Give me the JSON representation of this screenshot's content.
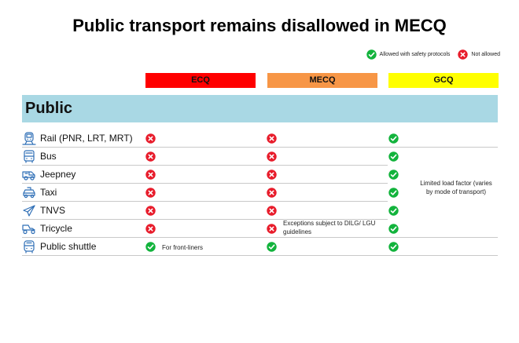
{
  "title": "Public transport remains disallowed in MECQ",
  "legend": {
    "allowed": "Allowed with safety protocols",
    "not_allowed": "Not allowed"
  },
  "columns": {
    "ecq": "ECQ",
    "mecq": "MECQ",
    "gcq": "GCQ"
  },
  "colors": {
    "ecq": "#ff0000",
    "mecq": "#f79646",
    "gcq": "#ffff00",
    "section": "#a9d8e4",
    "allowed": "#12b33c",
    "not_allowed": "#e81c2b"
  },
  "section_title": "Public",
  "rows": [
    {
      "label": "Rail (PNR, LRT, MRT)",
      "icon": "train-icon",
      "ecq": "no",
      "mecq": "no",
      "gcq": "yes"
    },
    {
      "label": "Bus",
      "icon": "bus-icon",
      "ecq": "no",
      "mecq": "no",
      "gcq": "yes"
    },
    {
      "label": "Jeepney",
      "icon": "jeepney-icon",
      "ecq": "no",
      "mecq": "no",
      "gcq": "yes"
    },
    {
      "label": "Taxi",
      "icon": "taxi-icon",
      "ecq": "no",
      "mecq": "no",
      "gcq": "yes"
    },
    {
      "label": "TNVS",
      "icon": "plane-icon",
      "ecq": "no",
      "mecq": "no",
      "gcq": "yes"
    },
    {
      "label": "Tricycle",
      "icon": "tricycle-icon",
      "ecq": "no",
      "mecq": "no",
      "gcq": "yes"
    },
    {
      "label": "Public shuttle",
      "icon": "shuttle-icon",
      "ecq": "yes",
      "mecq": "yes",
      "gcq": "yes"
    }
  ],
  "notes": {
    "ecq_shuttle": "For front-liners",
    "mecq_tricycle": "Exceptions subject to DILG/ LGU guidelines",
    "gcq": "Limited load factor (varies by mode of transport)"
  }
}
